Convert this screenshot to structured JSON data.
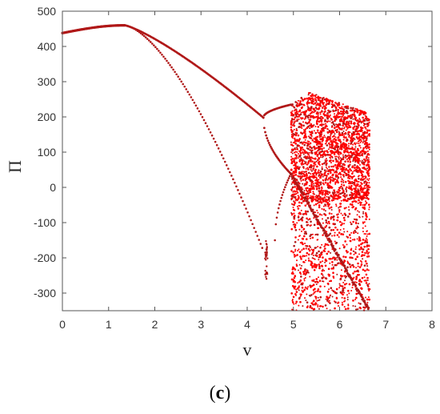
{
  "chart_data": {
    "type": "scatter",
    "title": "",
    "xlabel": "v",
    "ylabel": "Π",
    "xlim": [
      0,
      8
    ],
    "ylim": [
      -350,
      500
    ],
    "xticks": [
      0,
      1,
      2,
      3,
      4,
      5,
      6,
      7,
      8
    ],
    "yticks": [
      -300,
      -200,
      -100,
      0,
      100,
      200,
      300,
      400,
      500
    ],
    "grid": false,
    "legend": "none",
    "marker_color": "#b01818",
    "highlight_color": "#ff0000",
    "description": "bifurcation diagram",
    "segments": [
      {
        "name": "fixed-point",
        "v_range": [
          0,
          1.35
        ],
        "pi_range": [
          438,
          460
        ]
      },
      {
        "name": "upper-branch",
        "v_range": [
          1.35,
          4.35
        ],
        "pi_range": [
          460,
          198
        ]
      },
      {
        "name": "lower-branch",
        "v_range": [
          1.35,
          4.35
        ],
        "pi_range": [
          460,
          -180
        ]
      },
      {
        "name": "period-doubling-upper",
        "v_range": [
          4.35,
          4.9
        ],
        "pi_range": [
          198,
          235
        ]
      },
      {
        "name": "period-doubling-lower",
        "v_range": [
          4.35,
          4.9
        ],
        "pi_range": [
          198,
          40
        ]
      },
      {
        "name": "chaotic-band",
        "v_range": [
          4.95,
          6.65
        ],
        "pi_range": [
          -350,
          270
        ]
      }
    ]
  },
  "panel_label": {
    "open": "(",
    "letter": "c",
    "close": ")"
  }
}
